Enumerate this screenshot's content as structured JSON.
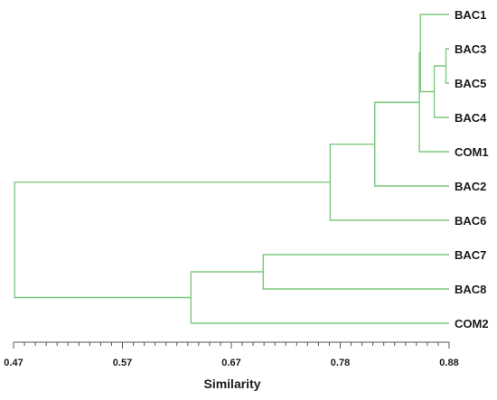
{
  "chart_data": {
    "type": "dendrogram",
    "xlabel": "Similarity",
    "xlim": [
      0.47,
      0.88
    ],
    "xticks": [
      "0.47",
      "0.57",
      "0.67",
      "0.78",
      "0.88"
    ],
    "link_color": "#7dc97d",
    "axis_color": "#555555",
    "leaves": [
      "BAC1",
      "BAC3",
      "BAC5",
      "BAC4",
      "COM1",
      "BAC2",
      "BAC6",
      "BAC7",
      "BAC8",
      "COM2"
    ],
    "merges": [
      {
        "id": "m1",
        "a": "BAC3",
        "b": "BAC5",
        "similarity": 0.877
      },
      {
        "id": "m2",
        "a": "m1",
        "b": "BAC4",
        "similarity": 0.866
      },
      {
        "id": "m3",
        "a": "BAC1",
        "b": "m2",
        "similarity": 0.853
      },
      {
        "id": "m4",
        "a": "m3",
        "b": "COM1",
        "similarity": 0.852
      },
      {
        "id": "m5",
        "a": "m4",
        "b": "BAC2",
        "similarity": 0.81
      },
      {
        "id": "m6",
        "a": "m5",
        "b": "BAC6",
        "similarity": 0.768
      },
      {
        "id": "m7",
        "a": "BAC7",
        "b": "BAC8",
        "similarity": 0.705
      },
      {
        "id": "m8",
        "a": "m7",
        "b": "COM2",
        "similarity": 0.637
      },
      {
        "id": "m9",
        "a": "m6",
        "b": "m8",
        "similarity": 0.471
      }
    ]
  }
}
